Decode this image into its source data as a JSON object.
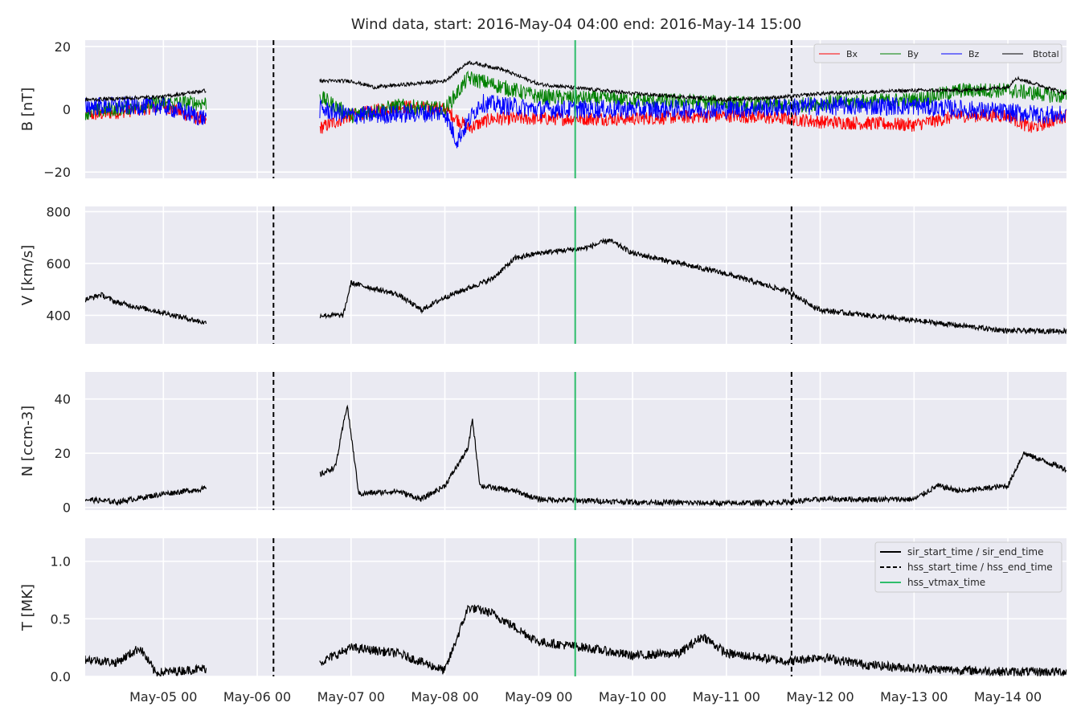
{
  "chart_data": {
    "type": "line",
    "title": "Wind data, start: 2016-May-04 04:00  end: 2016-May-14 15:00",
    "x_range": [
      "2016-05-04 04:00",
      "2016-05-14 15:00"
    ],
    "x_ticks": [
      {
        "time": "2016-05-05 00:00",
        "label": "May-05 00"
      },
      {
        "time": "2016-05-06 00:00",
        "label": "May-06 00"
      },
      {
        "time": "2016-05-07 00:00",
        "label": "May-07 00"
      },
      {
        "time": "2016-05-08 00:00",
        "label": "May-08 00"
      },
      {
        "time": "2016-05-09 00:00",
        "label": "May-09 00"
      },
      {
        "time": "2016-05-10 00:00",
        "label": "May-10 00"
      },
      {
        "time": "2016-05-11 00:00",
        "label": "May-11 00"
      },
      {
        "time": "2016-05-12 00:00",
        "label": "May-12 00"
      },
      {
        "time": "2016-05-13 00:00",
        "label": "May-13 00"
      },
      {
        "time": "2016-05-14 00:00",
        "label": "May-14 00"
      }
    ],
    "grid": true,
    "data_gap": [
      "2016-05-05 11:00",
      "2016-05-06 16:00"
    ],
    "markers": {
      "hss_start_time": "2016-05-06 04:10",
      "hss_end_time": "2016-05-11 16:40",
      "hss_vtmax_time": "2016-05-09 09:20"
    },
    "marker_colors": {
      "hss": "#000000",
      "vtmax": "#2ebd6b",
      "sir": "#000000"
    },
    "panels": [
      {
        "id": "B",
        "ylabel": "B [nT]",
        "ylim": [
          -22,
          22
        ],
        "yticks": [
          {
            "v": 20,
            "label": "20"
          },
          {
            "v": 0,
            "label": "0"
          },
          {
            "v": -20,
            "label": "−20"
          }
        ],
        "legend": {
          "placement": "top-right",
          "columns": 4
        },
        "series": [
          {
            "name": "Bx",
            "color": "#ff0000",
            "noise": 2.2,
            "points": [
              [
                "2016-05-04 04:00",
                -2
              ],
              [
                "2016-05-04 12:00",
                -1
              ],
              [
                "2016-05-05 00:00",
                1
              ],
              [
                "2016-05-05 11:00",
                -4
              ],
              [
                "2016-05-06 16:00",
                -6
              ],
              [
                "2016-05-07 00:00",
                -2
              ],
              [
                "2016-05-07 12:00",
                1
              ],
              [
                "2016-05-08 00:00",
                0
              ],
              [
                "2016-05-08 06:00",
                -6
              ],
              [
                "2016-05-08 12:00",
                -3
              ],
              [
                "2016-05-09 00:00",
                -3
              ],
              [
                "2016-05-10 00:00",
                -3
              ],
              [
                "2016-05-11 00:00",
                -2
              ],
              [
                "2016-05-11 16:00",
                -3
              ],
              [
                "2016-05-12 00:00",
                -4
              ],
              [
                "2016-05-13 00:00",
                -5
              ],
              [
                "2016-05-13 12:00",
                -2
              ],
              [
                "2016-05-14 00:00",
                -2
              ],
              [
                "2016-05-14 06:00",
                -6
              ],
              [
                "2016-05-14 15:00",
                -2
              ]
            ]
          },
          {
            "name": "By",
            "color": "#008000",
            "noise": 2.5,
            "points": [
              [
                "2016-05-04 04:00",
                -1
              ],
              [
                "2016-05-05 00:00",
                2
              ],
              [
                "2016-05-05 11:00",
                2
              ],
              [
                "2016-05-06 16:00",
                4
              ],
              [
                "2016-05-07 00:00",
                -2
              ],
              [
                "2016-05-07 12:00",
                1
              ],
              [
                "2016-05-08 00:00",
                0
              ],
              [
                "2016-05-08 06:00",
                10
              ],
              [
                "2016-05-08 12:00",
                8
              ],
              [
                "2016-05-09 00:00",
                4
              ],
              [
                "2016-05-10 00:00",
                3
              ],
              [
                "2016-05-11 00:00",
                2
              ],
              [
                "2016-05-11 16:00",
                1
              ],
              [
                "2016-05-12 00:00",
                2
              ],
              [
                "2016-05-13 00:00",
                3
              ],
              [
                "2016-05-13 12:00",
                6
              ],
              [
                "2016-05-14 00:00",
                6
              ],
              [
                "2016-05-14 15:00",
                4
              ]
            ]
          },
          {
            "name": "Bz",
            "color": "#0000ff",
            "noise": 3.0,
            "points": [
              [
                "2016-05-04 04:00",
                1
              ],
              [
                "2016-05-05 00:00",
                1
              ],
              [
                "2016-05-05 11:00",
                -3
              ],
              [
                "2016-05-06 16:00",
                0
              ],
              [
                "2016-05-07 00:00",
                -2
              ],
              [
                "2016-05-08 00:00",
                -1
              ],
              [
                "2016-05-08 03:00",
                -10
              ],
              [
                "2016-05-08 09:00",
                2
              ],
              [
                "2016-05-09 00:00",
                0
              ],
              [
                "2016-05-10 00:00",
                0
              ],
              [
                "2016-05-11 00:00",
                0
              ],
              [
                "2016-05-12 00:00",
                1
              ],
              [
                "2016-05-13 00:00",
                1
              ],
              [
                "2016-05-14 00:00",
                -1
              ],
              [
                "2016-05-14 15:00",
                -2
              ]
            ]
          },
          {
            "name": "Btotal",
            "color": "#000000",
            "noise": 0.6,
            "points": [
              [
                "2016-05-04 04:00",
                3
              ],
              [
                "2016-05-05 00:00",
                4
              ],
              [
                "2016-05-05 11:00",
                6
              ],
              [
                "2016-05-06 16:00",
                9
              ],
              [
                "2016-05-07 00:00",
                9
              ],
              [
                "2016-05-07 06:00",
                7
              ],
              [
                "2016-05-08 00:00",
                9
              ],
              [
                "2016-05-08 06:00",
                15
              ],
              [
                "2016-05-08 14:00",
                13
              ],
              [
                "2016-05-09 00:00",
                8
              ],
              [
                "2016-05-10 00:00",
                5
              ],
              [
                "2016-05-11 00:00",
                3
              ],
              [
                "2016-05-11 16:00",
                4
              ],
              [
                "2016-05-12 00:00",
                5
              ],
              [
                "2016-05-13 00:00",
                6
              ],
              [
                "2016-05-13 12:00",
                6
              ],
              [
                "2016-05-14 00:00",
                7
              ],
              [
                "2016-05-14 02:00",
                10
              ],
              [
                "2016-05-14 15:00",
                5
              ]
            ]
          }
        ]
      },
      {
        "id": "V",
        "ylabel": "V [km/s]",
        "ylim": [
          290,
          820
        ],
        "yticks": [
          {
            "v": 800,
            "label": "800"
          },
          {
            "v": 600,
            "label": "600"
          },
          {
            "v": 400,
            "label": "400"
          }
        ],
        "series": [
          {
            "name": "",
            "color": "#000000",
            "noise": 10,
            "points": [
              [
                "2016-05-04 04:00",
                460
              ],
              [
                "2016-05-04 08:00",
                480
              ],
              [
                "2016-05-04 12:00",
                450
              ],
              [
                "2016-05-05 00:00",
                410
              ],
              [
                "2016-05-05 11:00",
                370
              ],
              [
                "2016-05-06 16:00",
                400
              ],
              [
                "2016-05-06 22:00",
                400
              ],
              [
                "2016-05-07 00:00",
                525
              ],
              [
                "2016-05-07 12:00",
                480
              ],
              [
                "2016-05-07 18:00",
                420
              ],
              [
                "2016-05-08 00:00",
                470
              ],
              [
                "2016-05-08 12:00",
                540
              ],
              [
                "2016-05-08 18:00",
                620
              ],
              [
                "2016-05-09 00:00",
                640
              ],
              [
                "2016-05-09 12:00",
                660
              ],
              [
                "2016-05-09 18:00",
                690
              ],
              [
                "2016-05-10 00:00",
                640
              ],
              [
                "2016-05-10 12:00",
                600
              ],
              [
                "2016-05-11 00:00",
                560
              ],
              [
                "2016-05-11 16:00",
                490
              ],
              [
                "2016-05-12 00:00",
                420
              ],
              [
                "2016-05-12 12:00",
                400
              ],
              [
                "2016-05-13 00:00",
                380
              ],
              [
                "2016-05-13 12:00",
                360
              ],
              [
                "2016-05-14 00:00",
                340
              ],
              [
                "2016-05-14 15:00",
                340
              ]
            ]
          }
        ]
      },
      {
        "id": "N",
        "ylabel": "N [ccm-3]",
        "ylim": [
          -1,
          50
        ],
        "yticks": [
          {
            "v": 40,
            "label": "40"
          },
          {
            "v": 20,
            "label": "20"
          },
          {
            "v": 0,
            "label": "0"
          }
        ],
        "series": [
          {
            "name": "",
            "color": "#000000",
            "noise": 1.0,
            "points": [
              [
                "2016-05-04 04:00",
                3
              ],
              [
                "2016-05-04 12:00",
                2
              ],
              [
                "2016-05-05 00:00",
                5
              ],
              [
                "2016-05-05 11:00",
                7
              ],
              [
                "2016-05-06 16:00",
                12
              ],
              [
                "2016-05-06 20:00",
                15
              ],
              [
                "2016-05-06 23:00",
                38
              ],
              [
                "2016-05-07 02:00",
                5
              ],
              [
                "2016-05-07 12:00",
                6
              ],
              [
                "2016-05-07 18:00",
                3
              ],
              [
                "2016-05-08 00:00",
                8
              ],
              [
                "2016-05-08 06:00",
                22
              ],
              [
                "2016-05-08 07:00",
                33
              ],
              [
                "2016-05-08 09:00",
                8
              ],
              [
                "2016-05-08 18:00",
                6
              ],
              [
                "2016-05-09 00:00",
                3
              ],
              [
                "2016-05-10 00:00",
                2
              ],
              [
                "2016-05-11 00:00",
                1.5
              ],
              [
                "2016-05-11 16:00",
                2
              ],
              [
                "2016-05-12 00:00",
                3
              ],
              [
                "2016-05-13 00:00",
                3
              ],
              [
                "2016-05-13 06:00",
                8
              ],
              [
                "2016-05-13 12:00",
                6
              ],
              [
                "2016-05-14 00:00",
                8
              ],
              [
                "2016-05-14 04:00",
                20
              ],
              [
                "2016-05-14 15:00",
                14
              ]
            ]
          }
        ]
      },
      {
        "id": "T",
        "ylabel": "T [MK]",
        "ylim": [
          0,
          1.2
        ],
        "yticks": [
          {
            "v": 1.0,
            "label": "1.0"
          },
          {
            "v": 0.5,
            "label": "0.5"
          },
          {
            "v": 0.0,
            "label": "0.0"
          }
        ],
        "legend": {
          "placement": "top-right",
          "entries": [
            {
              "label": "sir_start_time / sir_end_time",
              "style": "solid",
              "color": "#000000"
            },
            {
              "label": "hss_start_time / hss_end_time",
              "style": "dashed",
              "color": "#000000"
            },
            {
              "label": "hss_vtmax_time",
              "style": "solid",
              "color": "#2ebd6b"
            }
          ]
        },
        "series": [
          {
            "name": "",
            "color": "#000000",
            "noise": 0.04,
            "points": [
              [
                "2016-05-04 04:00",
                0.15
              ],
              [
                "2016-05-04 12:00",
                0.12
              ],
              [
                "2016-05-04 18:00",
                0.25
              ],
              [
                "2016-05-04 22:00",
                0.03
              ],
              [
                "2016-05-05 11:00",
                0.07
              ],
              [
                "2016-05-06 16:00",
                0.12
              ],
              [
                "2016-05-07 00:00",
                0.25
              ],
              [
                "2016-05-07 12:00",
                0.2
              ],
              [
                "2016-05-08 00:00",
                0.05
              ],
              [
                "2016-05-08 06:00",
                0.6
              ],
              [
                "2016-05-08 12:00",
                0.55
              ],
              [
                "2016-05-09 00:00",
                0.3
              ],
              [
                "2016-05-09 12:00",
                0.25
              ],
              [
                "2016-05-10 00:00",
                0.18
              ],
              [
                "2016-05-10 12:00",
                0.2
              ],
              [
                "2016-05-10 18:00",
                0.35
              ],
              [
                "2016-05-11 00:00",
                0.2
              ],
              [
                "2016-05-11 16:00",
                0.13
              ],
              [
                "2016-05-12 00:00",
                0.17
              ],
              [
                "2016-05-12 12:00",
                0.1
              ],
              [
                "2016-05-13 00:00",
                0.07
              ],
              [
                "2016-05-14 00:00",
                0.04
              ],
              [
                "2016-05-14 15:00",
                0.04
              ]
            ]
          }
        ]
      }
    ]
  }
}
